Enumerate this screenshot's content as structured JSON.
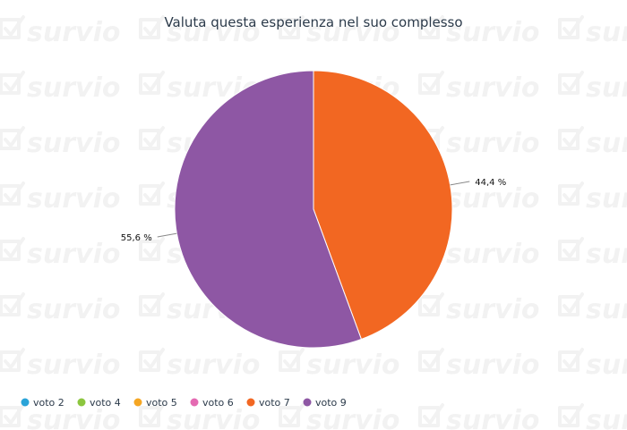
{
  "watermark": {
    "text": "survio"
  },
  "colors": {
    "background": "#ffffff",
    "title": "#2b3a4a",
    "leader_line": "#888888",
    "slice_border": "#ffffff"
  },
  "chart_data": {
    "type": "pie",
    "title": "Valuta questa esperienza nel suo complesso",
    "legend_position": "bottom-left",
    "start_angle_deg": 0,
    "direction": "clockwise",
    "legend": [
      {
        "name": "voto 2",
        "color": "#2aa3d8"
      },
      {
        "name": "voto 4",
        "color": "#8cc63f"
      },
      {
        "name": "voto 5",
        "color": "#f5a623"
      },
      {
        "name": "voto 6",
        "color": "#e46ab2"
      },
      {
        "name": "voto 7",
        "color": "#f26722"
      },
      {
        "name": "voto 9",
        "color": "#8e57a4"
      }
    ],
    "slices": [
      {
        "name": "voto 7",
        "value": 44.4,
        "label": "44,4 %",
        "color": "#f26722"
      },
      {
        "name": "voto 9",
        "value": 55.6,
        "label": "55,6 %",
        "color": "#8e57a4"
      }
    ]
  }
}
